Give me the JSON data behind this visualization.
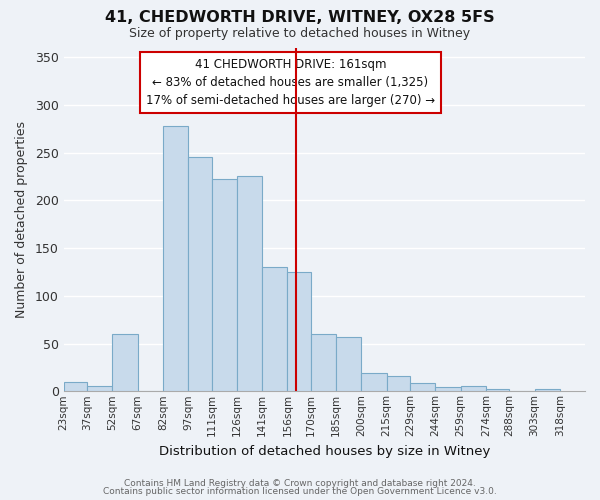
{
  "title": "41, CHEDWORTH DRIVE, WITNEY, OX28 5FS",
  "subtitle": "Size of property relative to detached houses in Witney",
  "xlabel": "Distribution of detached houses by size in Witney",
  "ylabel": "Number of detached properties",
  "bar_color": "#c8daeb",
  "bar_edge_color": "#7aaac8",
  "background_color": "#eef2f7",
  "grid_color": "#ffffff",
  "bin_labels": [
    "23sqm",
    "37sqm",
    "52sqm",
    "67sqm",
    "82sqm",
    "97sqm",
    "111sqm",
    "126sqm",
    "141sqm",
    "156sqm",
    "170sqm",
    "185sqm",
    "200sqm",
    "215sqm",
    "229sqm",
    "244sqm",
    "259sqm",
    "274sqm",
    "288sqm",
    "303sqm",
    "318sqm"
  ],
  "bin_edges": [
    23,
    37,
    52,
    67,
    82,
    97,
    111,
    126,
    141,
    156,
    170,
    185,
    200,
    215,
    229,
    244,
    259,
    274,
    288,
    303,
    318
  ],
  "bar_heights": [
    10,
    5,
    60,
    0,
    278,
    245,
    222,
    225,
    130,
    125,
    60,
    57,
    19,
    16,
    9,
    4,
    5,
    2,
    0,
    2,
    0
  ],
  "vline_x": 161,
  "vline_color": "#cc0000",
  "annotation_title": "41 CHEDWORTH DRIVE: 161sqm",
  "annotation_line1": "← 83% of detached houses are smaller (1,325)",
  "annotation_line2": "17% of semi-detached houses are larger (270) →",
  "annotation_box_color": "#ffffff",
  "annotation_box_edge": "#cc0000",
  "ylim": [
    0,
    360
  ],
  "yticks": [
    0,
    50,
    100,
    150,
    200,
    250,
    300,
    350
  ],
  "footer1": "Contains HM Land Registry data © Crown copyright and database right 2024.",
  "footer2": "Contains public sector information licensed under the Open Government Licence v3.0."
}
